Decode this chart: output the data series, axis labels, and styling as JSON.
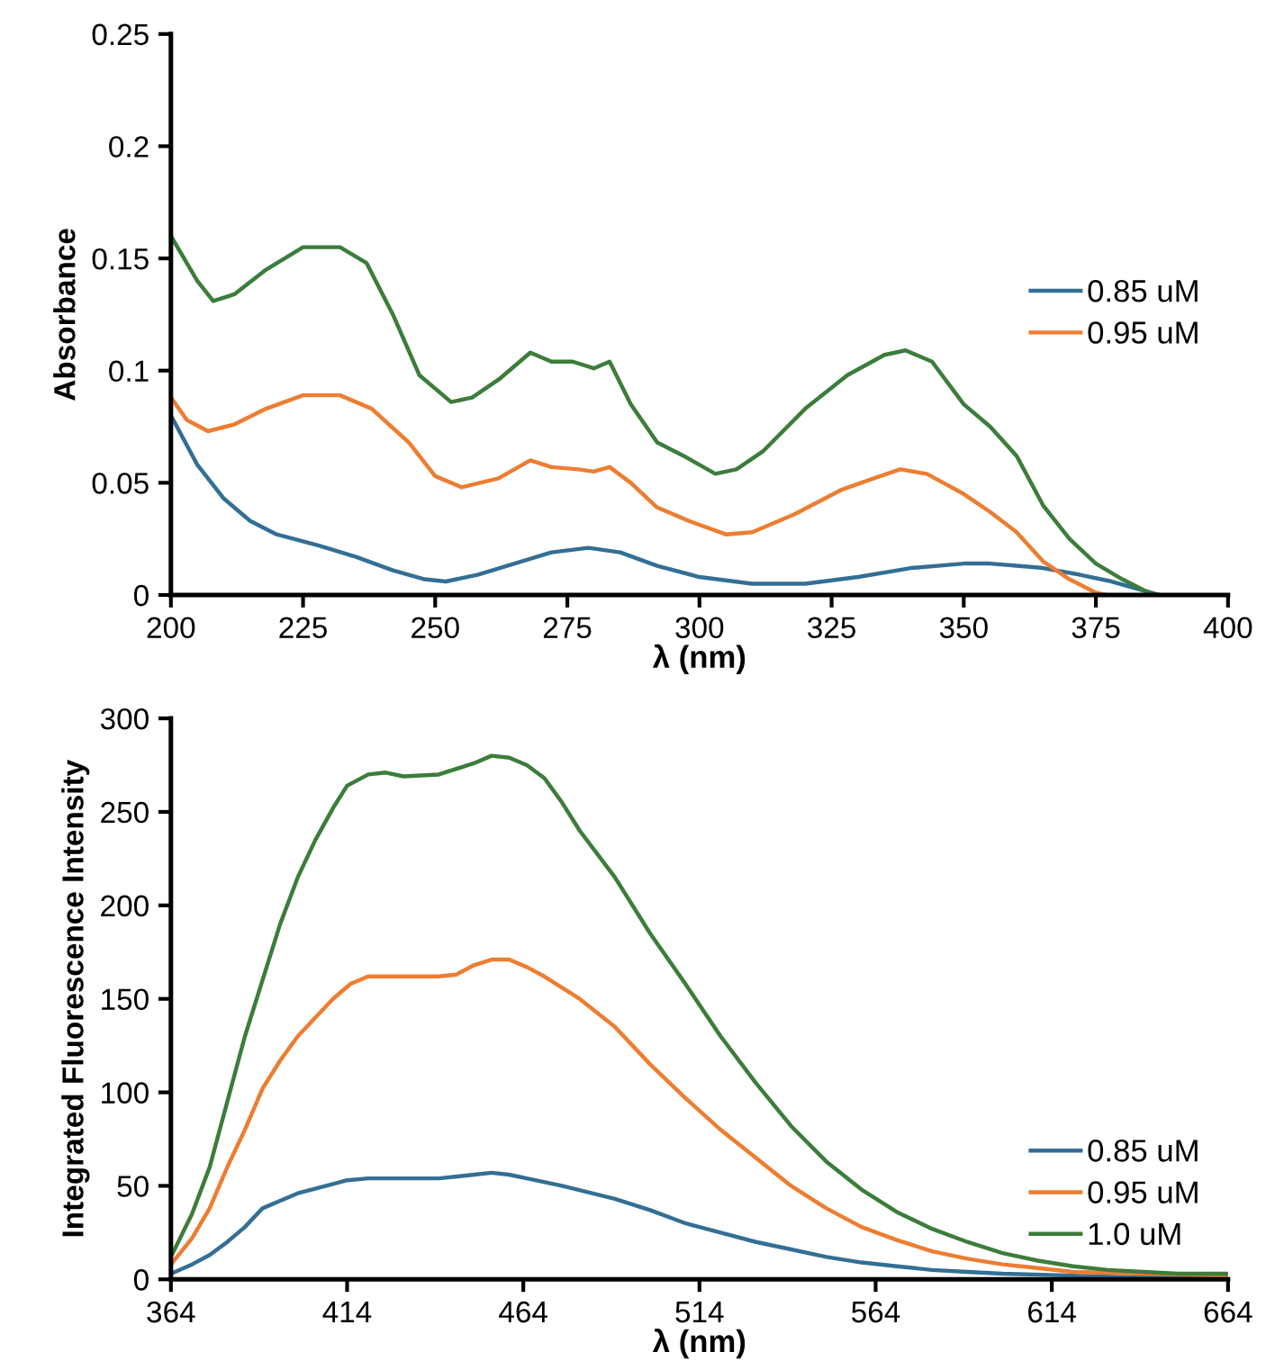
{
  "chart_data": [
    {
      "type": "line",
      "xlabel": "λ (nm)",
      "ylabel": "Absorbance",
      "xlim": [
        200,
        400
      ],
      "xticks": [
        200,
        225,
        250,
        275,
        300,
        325,
        350,
        375,
        400
      ],
      "ylim": [
        0,
        0.25
      ],
      "yticks": [
        0,
        0.05,
        0.1,
        0.15,
        0.2,
        0.25
      ],
      "grid": false,
      "legend": "right",
      "marker": "none",
      "line_style": "solid",
      "series": [
        {
          "name": "0.85 uM",
          "color": "#336f95",
          "x": [
            200,
            205,
            210,
            215,
            220,
            228,
            235,
            242,
            248,
            252,
            258,
            265,
            272,
            279,
            285,
            292,
            300,
            310,
            320,
            330,
            340,
            350,
            355,
            360,
            365,
            372,
            378,
            384,
            387
          ],
          "values": [
            0.08,
            0.058,
            0.043,
            0.033,
            0.027,
            0.022,
            0.017,
            0.011,
            0.007,
            0.006,
            0.009,
            0.014,
            0.019,
            0.021,
            0.019,
            0.013,
            0.008,
            0.005,
            0.005,
            0.008,
            0.012,
            0.014,
            0.014,
            0.013,
            0.012,
            0.009,
            0.006,
            0.002,
            0
          ]
        },
        {
          "name": "0.95 uM",
          "color": "#ed7d31",
          "x": [
            200,
            203,
            207,
            212,
            218,
            225,
            232,
            238,
            245,
            250,
            255,
            262,
            268,
            272,
            277,
            280,
            283,
            287,
            292,
            298,
            305,
            310,
            318,
            327,
            333,
            338,
            343,
            350,
            355,
            360,
            365,
            370,
            375,
            377
          ],
          "values": [
            0.088,
            0.078,
            0.073,
            0.076,
            0.083,
            0.089,
            0.089,
            0.083,
            0.068,
            0.053,
            0.048,
            0.052,
            0.06,
            0.057,
            0.056,
            0.055,
            0.057,
            0.05,
            0.039,
            0.033,
            0.027,
            0.028,
            0.036,
            0.047,
            0.052,
            0.056,
            0.054,
            0.045,
            0.037,
            0.028,
            0.015,
            0.007,
            0.001,
            0
          ]
        },
        {
          "color": "#3b7d3b",
          "x": [
            200,
            205,
            208,
            212,
            218,
            225,
            232,
            237,
            242,
            247,
            253,
            257,
            262,
            268,
            272,
            276,
            280,
            283,
            287,
            292,
            297,
            303,
            307,
            312,
            320,
            328,
            335,
            339,
            344,
            350,
            355,
            360,
            365,
            370,
            375,
            380,
            385,
            387
          ],
          "values": [
            0.16,
            0.14,
            0.131,
            0.134,
            0.145,
            0.155,
            0.155,
            0.148,
            0.125,
            0.098,
            0.086,
            0.088,
            0.096,
            0.108,
            0.104,
            0.104,
            0.101,
            0.104,
            0.085,
            0.068,
            0.062,
            0.054,
            0.056,
            0.064,
            0.083,
            0.098,
            0.107,
            0.109,
            0.104,
            0.085,
            0.075,
            0.062,
            0.04,
            0.025,
            0.014,
            0.007,
            0.001,
            0
          ]
        }
      ]
    },
    {
      "type": "line",
      "xlabel": "λ (nm)",
      "ylabel": "Integrated Fluorescence Intensity",
      "xlim": [
        364,
        664
      ],
      "xticks": [
        364,
        414,
        464,
        514,
        564,
        614,
        664
      ],
      "ylim": [
        0,
        300
      ],
      "yticks": [
        0,
        50,
        100,
        150,
        200,
        250,
        300
      ],
      "grid": false,
      "legend": "bottom right",
      "marker": "none",
      "line_style": "solid",
      "series": [
        {
          "name": "0.85 uM",
          "color": "#336f95",
          "x": [
            364,
            370,
            375,
            380,
            385,
            390,
            395,
            400,
            410,
            414,
            420,
            430,
            440,
            450,
            455,
            460,
            465,
            475,
            490,
            500,
            510,
            520,
            530,
            540,
            550,
            560,
            570,
            580,
            590,
            600,
            620,
            640,
            664
          ],
          "values": [
            3,
            8,
            13,
            20,
            28,
            38,
            42,
            46,
            51,
            53,
            54,
            54,
            54,
            56,
            57,
            56,
            54,
            50,
            43,
            37,
            30,
            25,
            20,
            16,
            12,
            9,
            7,
            5,
            4,
            3,
            2,
            1,
            1
          ]
        },
        {
          "name": "0.95 uM",
          "color": "#ed7d31",
          "x": [
            364,
            370,
            375,
            380,
            385,
            390,
            395,
            400,
            405,
            410,
            415,
            420,
            430,
            440,
            445,
            450,
            455,
            460,
            465,
            470,
            480,
            490,
            500,
            510,
            520,
            530,
            540,
            550,
            560,
            570,
            580,
            590,
            600,
            610,
            620,
            640,
            664
          ],
          "values": [
            8,
            22,
            38,
            60,
            80,
            102,
            117,
            130,
            140,
            150,
            158,
            162,
            162,
            162,
            163,
            168,
            171,
            171,
            167,
            162,
            150,
            135,
            115,
            97,
            80,
            65,
            50,
            38,
            28,
            21,
            15,
            11,
            8,
            6,
            4,
            3,
            2
          ]
        },
        {
          "name": "1.0 uM",
          "color": "#3b7d3b",
          "x": [
            364,
            370,
            375,
            380,
            385,
            390,
            395,
            400,
            405,
            410,
            414,
            420,
            425,
            430,
            440,
            450,
            455,
            460,
            465,
            470,
            475,
            480,
            490,
            500,
            510,
            520,
            530,
            540,
            550,
            560,
            570,
            580,
            590,
            600,
            610,
            620,
            630,
            640,
            650,
            664
          ],
          "values": [
            12,
            35,
            60,
            95,
            130,
            160,
            190,
            215,
            235,
            252,
            264,
            270,
            271,
            269,
            270,
            276,
            280,
            279,
            275,
            268,
            255,
            240,
            215,
            185,
            158,
            130,
            105,
            82,
            63,
            48,
            36,
            27,
            20,
            14,
            10,
            7,
            5,
            4,
            3,
            3
          ]
        }
      ]
    }
  ]
}
